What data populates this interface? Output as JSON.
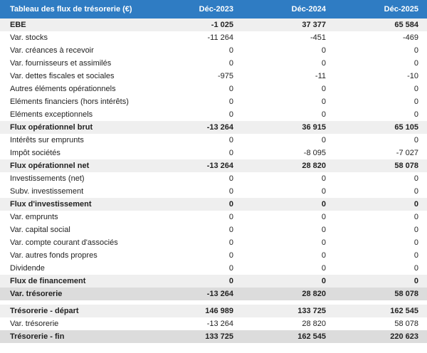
{
  "table": {
    "header": [
      "Tableau des flux de trésorerie (€)",
      "Déc-2023",
      "Déc-2024",
      "Déc-2025"
    ],
    "rows": [
      [
        "EBE",
        "-1 025",
        "37 377",
        "65 584"
      ],
      [
        "Var. stocks",
        "-11 264",
        "-451",
        "-469"
      ],
      [
        "Var. créances à recevoir",
        "0",
        "0",
        "0"
      ],
      [
        "Var. fournisseurs et assimilés",
        "0",
        "0",
        "0"
      ],
      [
        "Var. dettes fiscales et sociales",
        "-975",
        "-11",
        "-10"
      ],
      [
        "Autres éléments opérationnels",
        "0",
        "0",
        "0"
      ],
      [
        "Eléments financiers (hors intérêts)",
        "0",
        "0",
        "0"
      ],
      [
        "Eléments exceptionnels",
        "0",
        "0",
        "0"
      ],
      [
        "Flux opérationnel brut",
        "-13 264",
        "36 915",
        "65 105"
      ],
      [
        "Intérêts sur emprunts",
        "0",
        "0",
        "0"
      ],
      [
        "Impôt sociétés",
        "0",
        "-8 095",
        "-7 027"
      ],
      [
        "Flux opérationnel net",
        "-13 264",
        "28 820",
        "58 078"
      ],
      [
        "Investissements (net)",
        "0",
        "0",
        "0"
      ],
      [
        "Subv. investissement",
        "0",
        "0",
        "0"
      ],
      [
        "Flux d'investissement",
        "0",
        "0",
        "0"
      ],
      [
        "Var. emprunts",
        "0",
        "0",
        "0"
      ],
      [
        "Var. capital social",
        "0",
        "0",
        "0"
      ],
      [
        "Var. compte courant d'associés",
        "0",
        "0",
        "0"
      ],
      [
        "Var. autres fonds propres",
        "0",
        "0",
        "0"
      ],
      [
        "Dividende",
        "0",
        "0",
        "0"
      ],
      [
        "Flux de financement",
        "0",
        "0",
        "0"
      ],
      [
        "Var. trésorerie",
        "-13 264",
        "28 820",
        "58 078"
      ]
    ]
  },
  "summary": {
    "rows": [
      [
        "Trésorerie - départ",
        "146 989",
        "133 725",
        "162 545"
      ],
      [
        "Var. trésorerie",
        "-13 264",
        "28 820",
        "58 078"
      ],
      [
        "Trésorerie - fin",
        "133 725",
        "162 545",
        "220 623"
      ]
    ]
  }
}
